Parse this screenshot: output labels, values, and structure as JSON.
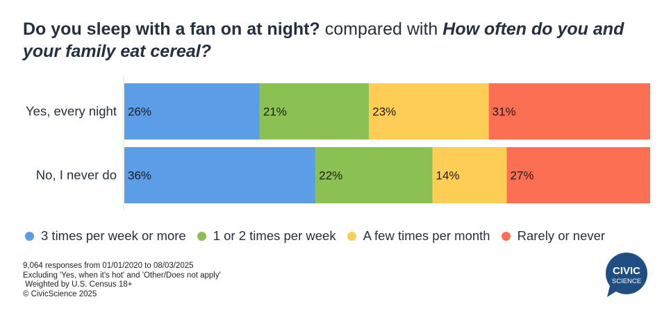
{
  "title": {
    "question1": "Do you sleep with a fan on at night?",
    "connector": " compared with ",
    "question2": "How often do you and your family eat cereal?"
  },
  "chart_data": {
    "type": "bar",
    "orientation": "horizontal-stacked-100",
    "categories": [
      "Yes, every night",
      "No, I never do"
    ],
    "series": [
      {
        "name": "3 times per week or more",
        "color": "#5b9de6",
        "values": [
          26,
          36
        ]
      },
      {
        "name": "1 or 2 times per week",
        "color": "#8bc152",
        "values": [
          21,
          22
        ]
      },
      {
        "name": "A few times per month",
        "color": "#fecd55",
        "values": [
          23,
          14
        ]
      },
      {
        "name": "Rarely or never",
        "color": "#fd6f53",
        "values": [
          31,
          27
        ]
      }
    ],
    "value_suffix": "%",
    "legend_position": "bottom",
    "grid": false
  },
  "footnotes": [
    "9,064 responses from 01/01/2020 to 08/03/2025",
    "Excluding 'Yes, when it's hot' and 'Other/Does not apply'",
    " Weighted by U.S. Census 18+",
    "© CivicScience 2025"
  ],
  "logo": {
    "line1": "CIVIC",
    "line2": "SCIENCE",
    "color": "#1f4f82"
  }
}
